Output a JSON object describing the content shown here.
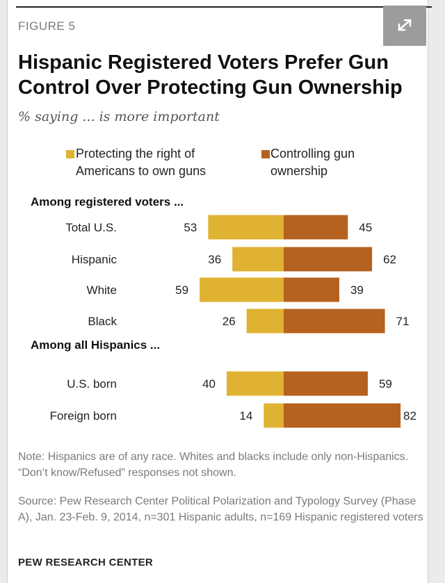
{
  "figure_label": "FIGURE 5",
  "title": "Hispanic Registered Voters Prefer Gun Control Over Protecting Gun Ownership",
  "subtitle": "% saying ... is more important",
  "expand_icon": "expand-arrows-icon",
  "legend": {
    "protect_label": "Protecting the right of Americans to own guns",
    "control_label": "Controlling gun ownership"
  },
  "sections": {
    "registered": "Among registered voters ...",
    "hispanics": "Among all Hispanics ..."
  },
  "colors": {
    "protect": "#e0b232",
    "control": "#b5611f"
  },
  "chart_data": {
    "type": "bar",
    "orientation": "horizontal-diverging",
    "categories": [
      "Total U.S.",
      "Hispanic",
      "White",
      "Black",
      "U.S. born",
      "Foreign born"
    ],
    "groups": [
      {
        "name": "Among registered voters ...",
        "categories": [
          "Total U.S.",
          "Hispanic",
          "White",
          "Black"
        ]
      },
      {
        "name": "Among all Hispanics ...",
        "categories": [
          "U.S. born",
          "Foreign born"
        ]
      }
    ],
    "series": [
      {
        "name": "Protecting the right of Americans to own guns",
        "values": [
          53,
          36,
          59,
          26,
          40,
          14
        ]
      },
      {
        "name": "Controlling gun ownership",
        "values": [
          45,
          62,
          39,
          71,
          59,
          82
        ]
      }
    ],
    "title": "Hispanic Registered Voters Prefer Gun Control Over Protecting Gun Ownership",
    "subtitle": "% saying ... is more important",
    "legend_position": "top"
  },
  "note": "Note: Hispanics are of any race. Whites and blacks include only non-Hispanics. “Don’t know/Refused” responses not shown.",
  "source": "Source: Pew Research Center Political Polarization and Typology Survey (Phase A), Jan. 23-Feb. 9, 2014, n=301 Hispanic adults, n=169 Hispanic registered voters",
  "org": "PEW RESEARCH CENTER"
}
